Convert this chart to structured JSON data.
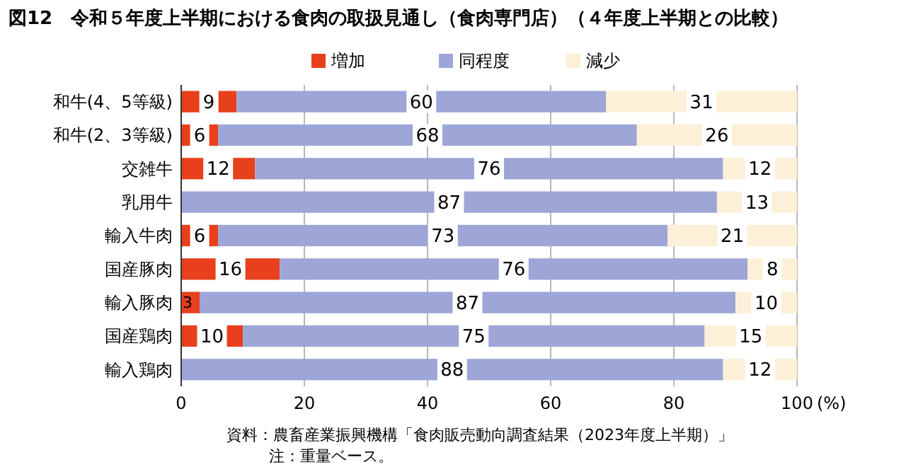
{
  "chart_data": {
    "type": "bar",
    "orientation": "horizontal",
    "stacked": true,
    "title": "図12　令和５年度上半期における食肉の取扱見通し（食肉専門店）（４年度上半期との比較）",
    "categories": [
      "和牛(4、5等級)",
      "和牛(2、3等級)",
      "交雑牛",
      "乳用牛",
      "輸入牛肉",
      "国産豚肉",
      "輸入豚肉",
      "国産鶏肉",
      "輸入鶏肉"
    ],
    "series": [
      {
        "name": "増加",
        "color": "#e8401c",
        "values": [
          9,
          6,
          12,
          0,
          6,
          16,
          3,
          10,
          0
        ],
        "value_labels": [
          "9",
          "6",
          "12",
          null,
          "6",
          "16",
          "3",
          "10",
          null
        ]
      },
      {
        "name": "同程度",
        "color": "#9ea6d8",
        "values": [
          60,
          68,
          76,
          87,
          73,
          76,
          87,
          75,
          88
        ],
        "value_labels": [
          "60",
          "68",
          "76",
          "87",
          "73",
          "76",
          "87",
          "75",
          "88"
        ]
      },
      {
        "name": "減少",
        "color": "#fdf0d8",
        "values": [
          31,
          26,
          12,
          13,
          21,
          8,
          10,
          15,
          12
        ],
        "value_labels": [
          "31",
          "26",
          "12",
          "13",
          "21",
          "8",
          "10",
          "15",
          "12"
        ]
      }
    ],
    "xlim": [
      0,
      100
    ],
    "xticks": [
      0,
      20,
      40,
      60,
      80,
      100
    ],
    "xlabel": "(%)",
    "grid": "x",
    "legend": "top",
    "annotations": [
      "資料：農畜産業振興機構「食肉販売動向調査結果（2023年度上半期）」",
      "注：重量ベース。"
    ]
  }
}
